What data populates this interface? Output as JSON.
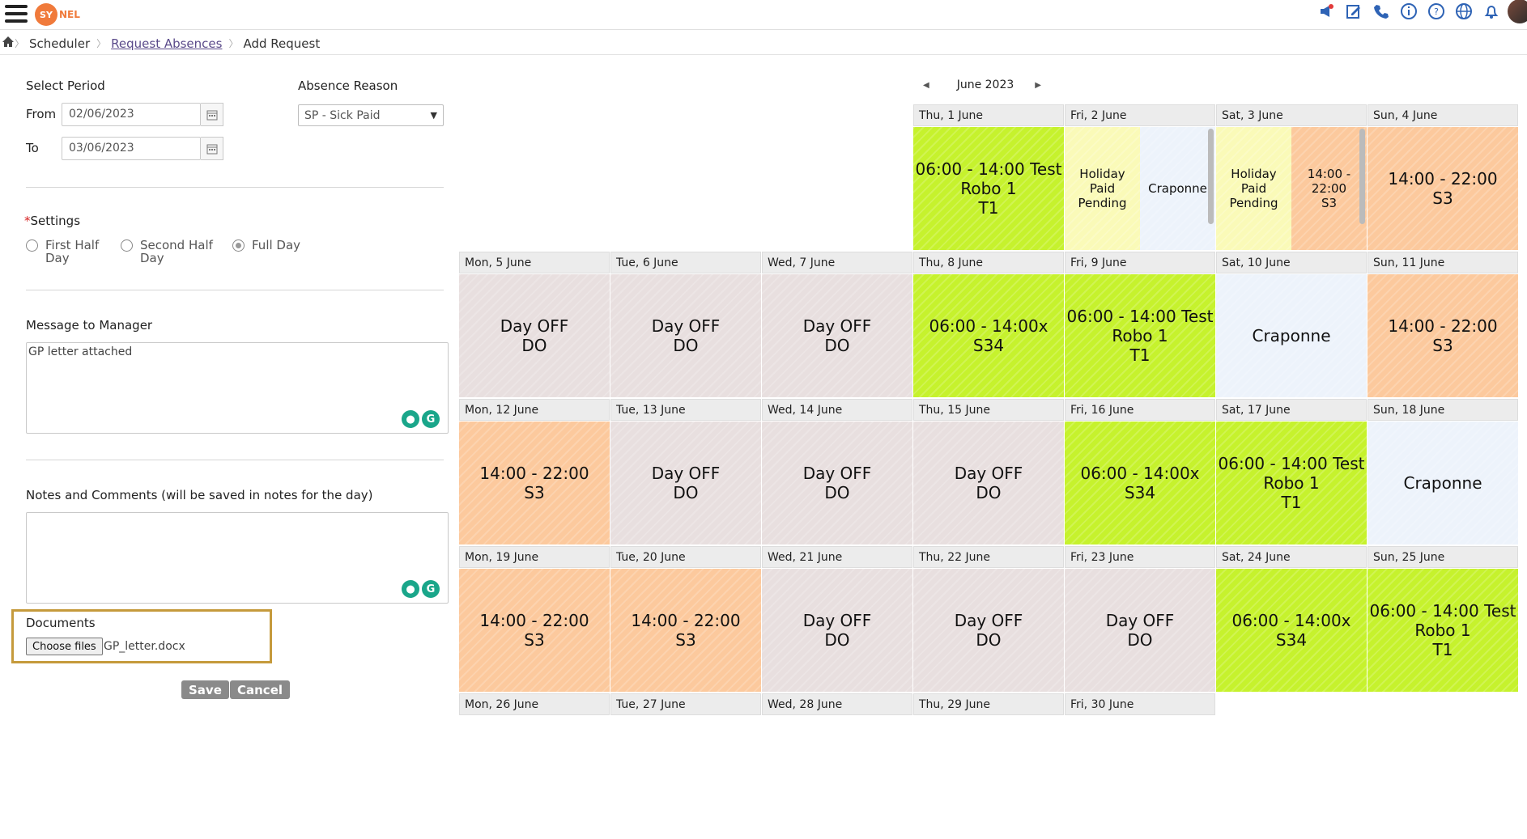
{
  "header": {
    "logo_text": "SY",
    "logo_rest": "NEL",
    "icons": [
      "megaphone-icon",
      "edit-icon",
      "phone-icon",
      "info-icon",
      "help-icon",
      "globe-icon",
      "bell-icon"
    ]
  },
  "breadcrumb": {
    "home": "home-icon",
    "scheduler": "Scheduler",
    "request_absences": "Request Absences",
    "add_request": "Add Request"
  },
  "form": {
    "select_period": "Select Period",
    "from_label": "From",
    "from_value": "02/06/2023",
    "to_label": "To",
    "to_value": "03/06/2023",
    "absence_reason_label": "Absence Reason",
    "absence_reason_value": "SP - Sick Paid",
    "settings_label": "Settings",
    "required_star": "*",
    "radios": [
      {
        "line1": "First Half",
        "line2": "Day",
        "checked": false
      },
      {
        "line1": "Second Half",
        "line2": "Day",
        "checked": false
      },
      {
        "line1": "Full Day",
        "line2": "",
        "checked": true
      }
    ],
    "message_label": "Message to Manager",
    "message_value": "GP letter attached",
    "notes_label": "Notes and Comments (will be saved in notes for the day)",
    "notes_value": "",
    "documents_label": "Documents",
    "choose_files": "Choose files",
    "file_name": "GP_letter.docx",
    "save": "Save",
    "cancel": "Cancel"
  },
  "calendar": {
    "month": "June 2023",
    "row1": [
      {
        "day": "Thu, 1 June",
        "color": "#c6f22d",
        "text": [
          "06:00 - 14:00 Test",
          "Robo 1",
          "T1"
        ]
      },
      {
        "day": "Fri, 2 June",
        "split": [
          {
            "color": "#fafab8",
            "text": [
              "Holiday",
              "Paid",
              "Pending"
            ]
          },
          {
            "color": "#edf3fb",
            "text": [
              "Craponne"
            ]
          }
        ]
      },
      {
        "day": "Sat, 3 June",
        "split": [
          {
            "color": "#fafab8",
            "text": [
              "Holiday",
              "Paid",
              "Pending"
            ]
          },
          {
            "color": "#fcc99d",
            "text": [
              "14:00 - 22:00",
              "S3"
            ]
          }
        ]
      },
      {
        "day": "Sun, 4 June",
        "color": "#fcc99d",
        "text": [
          "14:00 - 22:00",
          "S3"
        ]
      }
    ],
    "row2": [
      {
        "day": "Mon, 5 June",
        "color": "#e8dfdf",
        "text": [
          "Day OFF",
          "DO"
        ]
      },
      {
        "day": "Tue, 6 June",
        "color": "#e8dfdf",
        "text": [
          "Day OFF",
          "DO"
        ]
      },
      {
        "day": "Wed, 7 June",
        "color": "#e8dfdf",
        "text": [
          "Day OFF",
          "DO"
        ]
      },
      {
        "day": "Thu, 8 June",
        "color": "#c6f22d",
        "text": [
          "06:00 - 14:00x",
          "S34"
        ]
      },
      {
        "day": "Fri, 9 June",
        "color": "#c6f22d",
        "text": [
          "06:00 - 14:00 Test",
          "Robo 1",
          "T1"
        ]
      },
      {
        "day": "Sat, 10 June",
        "color": "#edf3fb",
        "text": [
          "Craponne"
        ]
      },
      {
        "day": "Sun, 11 June",
        "color": "#fcc99d",
        "text": [
          "14:00 - 22:00",
          "S3"
        ]
      }
    ],
    "row3": [
      {
        "day": "Mon, 12 June",
        "color": "#fcc99d",
        "text": [
          "14:00 - 22:00",
          "S3"
        ]
      },
      {
        "day": "Tue, 13 June",
        "color": "#e8dfdf",
        "text": [
          "Day OFF",
          "DO"
        ]
      },
      {
        "day": "Wed, 14 June",
        "color": "#e8dfdf",
        "text": [
          "Day OFF",
          "DO"
        ]
      },
      {
        "day": "Thu, 15 June",
        "color": "#e8dfdf",
        "text": [
          "Day OFF",
          "DO"
        ]
      },
      {
        "day": "Fri, 16 June",
        "color": "#c6f22d",
        "text": [
          "06:00 - 14:00x",
          "S34"
        ]
      },
      {
        "day": "Sat, 17 June",
        "color": "#c6f22d",
        "text": [
          "06:00 - 14:00 Test",
          "Robo 1",
          "T1"
        ]
      },
      {
        "day": "Sun, 18 June",
        "color": "#edf3fb",
        "text": [
          "Craponne"
        ]
      }
    ],
    "row4": [
      {
        "day": "Mon, 19 June",
        "color": "#fcc99d",
        "text": [
          "14:00 - 22:00",
          "S3"
        ]
      },
      {
        "day": "Tue, 20 June",
        "color": "#fcc99d",
        "text": [
          "14:00 - 22:00",
          "S3"
        ]
      },
      {
        "day": "Wed, 21 June",
        "color": "#e8dfdf",
        "text": [
          "Day OFF",
          "DO"
        ]
      },
      {
        "day": "Thu, 22 June",
        "color": "#e8dfdf",
        "text": [
          "Day OFF",
          "DO"
        ]
      },
      {
        "day": "Fri, 23 June",
        "color": "#e8dfdf",
        "text": [
          "Day OFF",
          "DO"
        ]
      },
      {
        "day": "Sat, 24 June",
        "color": "#c6f22d",
        "text": [
          "06:00 - 14:00x",
          "S34"
        ]
      },
      {
        "day": "Sun, 25 June",
        "color": "#c6f22d",
        "text": [
          "06:00 - 14:00 Test",
          "Robo 1",
          "T1"
        ]
      }
    ],
    "row5": [
      {
        "day": "Mon, 26 June"
      },
      {
        "day": "Tue, 27 June"
      },
      {
        "day": "Wed, 28 June"
      },
      {
        "day": "Thu, 29 June"
      },
      {
        "day": "Fri, 30 June"
      }
    ]
  }
}
